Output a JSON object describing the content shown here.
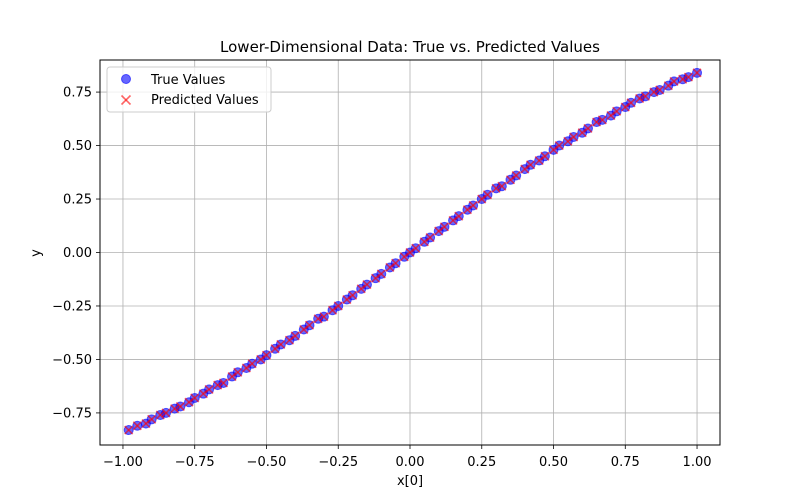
{
  "chart_data": {
    "type": "scatter",
    "title": "Lower-Dimensional Data: True vs. Predicted Values",
    "xlabel": "x[0]",
    "ylabel": "y",
    "xlim": [
      -1.08,
      1.08
    ],
    "ylim": [
      -0.9,
      0.9
    ],
    "xticks": [
      -1.0,
      -0.75,
      -0.5,
      -0.25,
      0.0,
      0.25,
      0.5,
      0.75,
      1.0
    ],
    "xtick_labels": [
      "−1.00",
      "−0.75",
      "−0.50",
      "−0.25",
      "0.00",
      "0.25",
      "0.50",
      "0.75",
      "1.00"
    ],
    "yticks": [
      -0.75,
      -0.5,
      -0.25,
      0.0,
      0.25,
      0.5,
      0.75
    ],
    "ytick_labels": [
      "−0.75",
      "−0.50",
      "−0.25",
      "0.00",
      "0.25",
      "0.50",
      "0.75"
    ],
    "grid": true,
    "legend_position": "top-left",
    "series": [
      {
        "name": "True Values",
        "marker": "circle",
        "color": "#0000ff",
        "x": [
          -0.98,
          -0.95,
          -0.92,
          -0.9,
          -0.87,
          -0.85,
          -0.82,
          -0.8,
          -0.77,
          -0.75,
          -0.72,
          -0.7,
          -0.67,
          -0.65,
          -0.62,
          -0.6,
          -0.57,
          -0.55,
          -0.52,
          -0.5,
          -0.47,
          -0.45,
          -0.42,
          -0.4,
          -0.37,
          -0.35,
          -0.32,
          -0.3,
          -0.27,
          -0.25,
          -0.22,
          -0.2,
          -0.17,
          -0.15,
          -0.12,
          -0.1,
          -0.07,
          -0.05,
          -0.02,
          0.0,
          0.02,
          0.05,
          0.07,
          0.1,
          0.12,
          0.15,
          0.17,
          0.2,
          0.22,
          0.25,
          0.27,
          0.3,
          0.32,
          0.35,
          0.37,
          0.4,
          0.42,
          0.45,
          0.47,
          0.5,
          0.52,
          0.55,
          0.57,
          0.6,
          0.62,
          0.65,
          0.67,
          0.7,
          0.72,
          0.75,
          0.77,
          0.8,
          0.82,
          0.85,
          0.87,
          0.9,
          0.92,
          0.95,
          0.97,
          1.0
        ],
        "y": [
          -0.83,
          -0.81,
          -0.8,
          -0.78,
          -0.76,
          -0.75,
          -0.73,
          -0.72,
          -0.7,
          -0.68,
          -0.66,
          -0.64,
          -0.62,
          -0.61,
          -0.58,
          -0.56,
          -0.54,
          -0.52,
          -0.5,
          -0.48,
          -0.45,
          -0.43,
          -0.41,
          -0.39,
          -0.36,
          -0.34,
          -0.31,
          -0.3,
          -0.27,
          -0.25,
          -0.22,
          -0.2,
          -0.17,
          -0.15,
          -0.12,
          -0.1,
          -0.07,
          -0.05,
          -0.02,
          0.0,
          0.02,
          0.05,
          0.07,
          0.1,
          0.12,
          0.15,
          0.17,
          0.2,
          0.22,
          0.25,
          0.27,
          0.3,
          0.31,
          0.34,
          0.36,
          0.39,
          0.41,
          0.43,
          0.45,
          0.48,
          0.5,
          0.52,
          0.54,
          0.56,
          0.58,
          0.61,
          0.62,
          0.64,
          0.66,
          0.68,
          0.7,
          0.72,
          0.73,
          0.75,
          0.76,
          0.78,
          0.8,
          0.81,
          0.82,
          0.84
        ]
      },
      {
        "name": "Predicted Values",
        "marker": "x",
        "color": "#ff0000",
        "x": [
          -0.98,
          -0.95,
          -0.92,
          -0.9,
          -0.87,
          -0.85,
          -0.82,
          -0.8,
          -0.77,
          -0.75,
          -0.72,
          -0.7,
          -0.67,
          -0.65,
          -0.62,
          -0.6,
          -0.57,
          -0.55,
          -0.52,
          -0.5,
          -0.47,
          -0.45,
          -0.42,
          -0.4,
          -0.37,
          -0.35,
          -0.32,
          -0.3,
          -0.27,
          -0.25,
          -0.22,
          -0.2,
          -0.17,
          -0.15,
          -0.12,
          -0.1,
          -0.07,
          -0.05,
          -0.02,
          0.0,
          0.02,
          0.05,
          0.07,
          0.1,
          0.12,
          0.15,
          0.17,
          0.2,
          0.22,
          0.25,
          0.27,
          0.3,
          0.32,
          0.35,
          0.37,
          0.4,
          0.42,
          0.45,
          0.47,
          0.5,
          0.52,
          0.55,
          0.57,
          0.6,
          0.62,
          0.65,
          0.67,
          0.7,
          0.72,
          0.75,
          0.77,
          0.8,
          0.82,
          0.85,
          0.87,
          0.9,
          0.92,
          0.95,
          0.97,
          1.0
        ],
        "y": [
          -0.83,
          -0.81,
          -0.8,
          -0.78,
          -0.76,
          -0.75,
          -0.73,
          -0.72,
          -0.7,
          -0.68,
          -0.66,
          -0.64,
          -0.62,
          -0.61,
          -0.58,
          -0.56,
          -0.54,
          -0.52,
          -0.5,
          -0.48,
          -0.45,
          -0.43,
          -0.41,
          -0.39,
          -0.36,
          -0.34,
          -0.31,
          -0.3,
          -0.27,
          -0.25,
          -0.22,
          -0.2,
          -0.17,
          -0.15,
          -0.12,
          -0.1,
          -0.07,
          -0.05,
          -0.02,
          0.0,
          0.02,
          0.05,
          0.07,
          0.1,
          0.12,
          0.15,
          0.17,
          0.2,
          0.22,
          0.25,
          0.27,
          0.3,
          0.31,
          0.34,
          0.36,
          0.39,
          0.41,
          0.43,
          0.45,
          0.48,
          0.5,
          0.52,
          0.54,
          0.56,
          0.58,
          0.61,
          0.62,
          0.64,
          0.66,
          0.68,
          0.7,
          0.72,
          0.73,
          0.75,
          0.76,
          0.78,
          0.8,
          0.81,
          0.82,
          0.84
        ]
      }
    ]
  }
}
